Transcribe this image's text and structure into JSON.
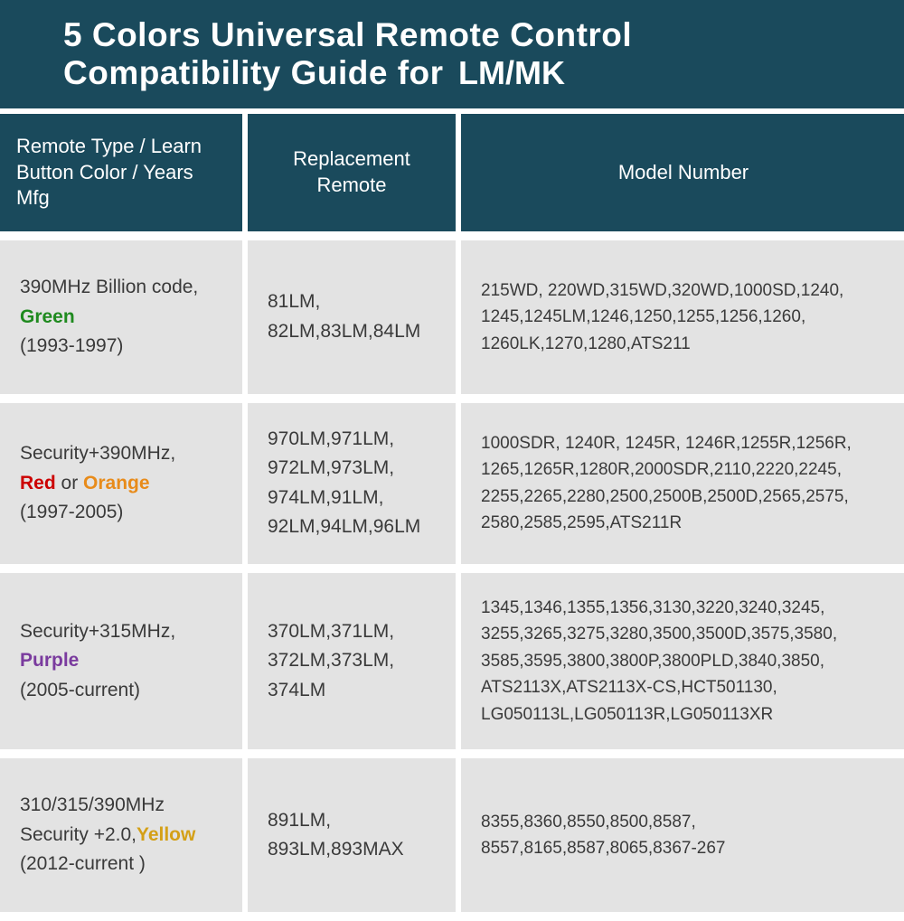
{
  "colors": {
    "header_bg": "#1a4a5c",
    "cell_bg": "#e3e3e3",
    "page_bg": "#ffffff",
    "text_dark": "#3a3a3a",
    "text_light": "#ffffff",
    "green": "#1f8a1f",
    "red": "#cc0000",
    "orange": "#e88b1a",
    "purple": "#7a3b9e",
    "yellow": "#d4a017"
  },
  "title": {
    "line1": "5 Colors Universal Remote Control",
    "line2_prefix": "Compatibility Guide for",
    "line2_suffix": "LM/MK"
  },
  "columns": [
    "Remote Type / Learn\nButton Color / Years Mfg",
    "Replacement\nRemote",
    "Model Number"
  ],
  "rows": [
    {
      "type": {
        "prefix": "390MHz Billion code,",
        "color_tokens": [
          {
            "text": "Green",
            "color": "#1f8a1f"
          }
        ],
        "years": "(1993-1997)"
      },
      "replacement": "81LM, 82LM,83LM,84LM",
      "models": "215WD, 220WD,315WD,320WD,1000SD,1240, 1245,1245LM,1246,1250,1255,1256,1260, 1260LK,1270,1280,ATS211"
    },
    {
      "type": {
        "prefix": "Security+390MHz,",
        "color_tokens": [
          {
            "text": "Red",
            "color": "#cc0000"
          },
          {
            "text": " or ",
            "color": "#3a3a3a",
            "plain": true
          },
          {
            "text": "Orange",
            "color": "#e88b1a"
          }
        ],
        "years": "(1997-2005)"
      },
      "replacement": "970LM,971LM, 972LM,973LM, 974LM,91LM, 92LM,94LM,96LM",
      "models": "1000SDR, 1240R, 1245R, 1246R,1255R,1256R, 1265,1265R,1280R,2000SDR,2110,2220,2245, 2255,2265,2280,2500,2500B,2500D,2565,2575, 2580,2585,2595,ATS211R"
    },
    {
      "type": {
        "prefix": "Security+315MHz,",
        "color_tokens": [
          {
            "text": "Purple",
            "color": "#7a3b9e"
          }
        ],
        "years": "(2005-current)"
      },
      "replacement": "370LM,371LM, 372LM,373LM, 374LM",
      "models": "1345,1346,1355,1356,3130,3220,3240,3245, 3255,3265,3275,3280,3500,3500D,3575,3580, 3585,3595,3800,3800P,3800PLD,3840,3850, ATS2113X,ATS2113X-CS,HCT501130, LG050113L,LG050113R,LG050113XR"
    },
    {
      "type": {
        "prefix": "310/315/390MHz",
        "inline_before_color": "Security +2.0,",
        "color_tokens": [
          {
            "text": "Yellow",
            "color": "#d4a017"
          }
        ],
        "years": "(2012-current )"
      },
      "replacement": "891LM, 893LM,893MAX",
      "models": "8355,8360,8550,8500,8587, 8557,8165,8587,8065,8367-267"
    }
  ]
}
